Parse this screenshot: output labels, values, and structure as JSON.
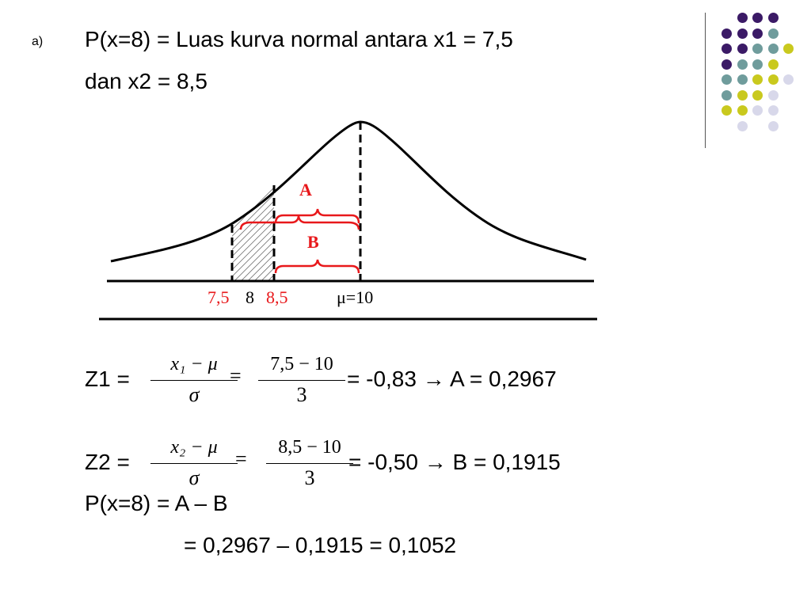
{
  "item_marker": "a)",
  "line1": "P(x=8) = Luas kurva normal antara x1 = 7,5",
  "line2": "dan x2 = 8,5",
  "figure": {
    "label_a": "A",
    "label_b": "B",
    "tick_75": "7,5",
    "tick_8": "8",
    "tick_85": "8,5",
    "tick_mu": "μ=10"
  },
  "z1": {
    "label": "Z1 =",
    "num_sym": "x₁ − μ",
    "den_sym": "σ",
    "eq": "=",
    "num_val": "7,5 − 10",
    "den_val": "3",
    "result": "= -0,83 → A = 0,2967"
  },
  "z2": {
    "label": "Z2 =",
    "num_sym": "x₂ − μ",
    "den_sym": "σ",
    "eq": "=",
    "num_val": "8,5 − 10",
    "den_val": "3",
    "result": "= -0,50 → B = 0,1915"
  },
  "px_line": "P(x=8) = A – B",
  "final_line": "= 0,2967 – 0,1915  = 0,1052",
  "colors": {
    "purple": "#3b1a66",
    "teal": "#6f9c9c",
    "yellow": "#c9c91e",
    "lavender": "#d8d8ea",
    "red": "#e8181b"
  }
}
